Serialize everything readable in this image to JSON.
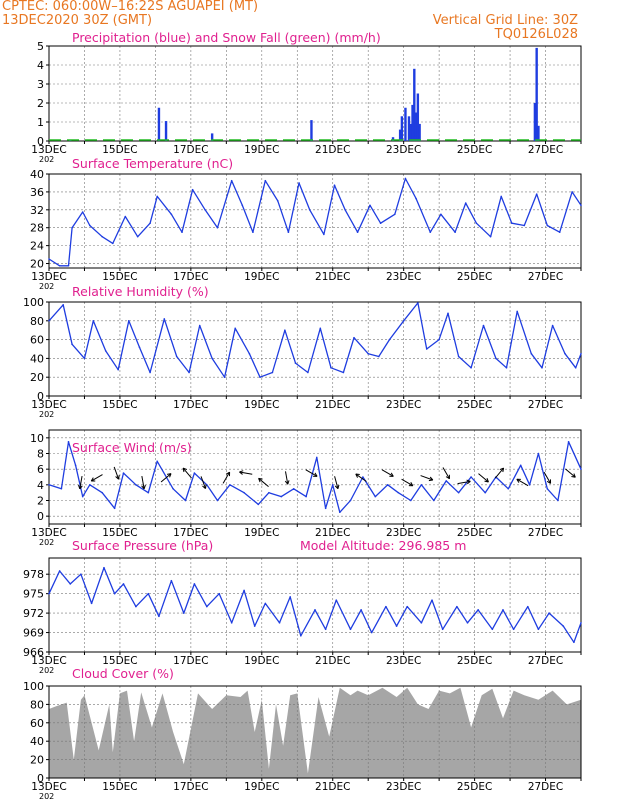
{
  "colors": {
    "header": "#e87722",
    "panel_title": "#e0208f",
    "series_line": "#1f3de0",
    "precip_bar": "#1f3de0",
    "snow_bar": "#22bb22",
    "cloud_fill": "#a6a6a6",
    "wind_arrow": "#000000",
    "grid": "#777777"
  },
  "header": {
    "left_line1": "CPTEC:   060:00W–16:22S   AGUAPEI (MT)",
    "left_line2": "13DEC2020  30Z  (GMT)",
    "vertical_grid_line": "Vertical Grid Line: 30Z",
    "code": "TQ0126L028"
  },
  "x_axis": {
    "ticks": [
      "13DEC",
      "15DEC",
      "17DEC",
      "19DEC",
      "21DEC",
      "23DEC",
      "25DEC",
      "27DEC"
    ],
    "year_fragment": "202",
    "start_day": 13,
    "end_day": 28
  },
  "chart_data": [
    {
      "id": "precip",
      "type": "bar",
      "title": "Precipitation (blue) and Snow Fall (green) (mm/h)",
      "ylim": [
        0,
        5
      ],
      "yticks": [
        "0",
        "1",
        "2",
        "3",
        "4",
        "5"
      ],
      "series": [
        {
          "name": "Precipitation",
          "x": [
            13.6,
            16.1,
            16.3,
            17.6,
            20.4,
            22.7,
            22.9,
            22.95,
            23.05,
            23.15,
            23.2,
            23.25,
            23.3,
            23.35,
            23.4,
            23.45,
            26.7,
            26.75,
            26.8
          ],
          "values": [
            0.05,
            1.75,
            1.05,
            0.4,
            1.1,
            0.2,
            0.6,
            1.3,
            1.75,
            1.3,
            0.9,
            1.9,
            3.8,
            1.5,
            2.5,
            0.9,
            2.0,
            4.9,
            0.8
          ]
        },
        {
          "name": "Snow Fall",
          "x": [
            13.0,
            28.0
          ],
          "values": [
            0.05,
            0.05
          ]
        }
      ]
    },
    {
      "id": "temp",
      "type": "line",
      "title": "Surface Temperature (nC)",
      "ylim": [
        19,
        40
      ],
      "yticks": [
        "20",
        "24",
        "28",
        "32",
        "36",
        "40"
      ],
      "x": [
        13.0,
        13.3,
        13.55,
        13.65,
        13.95,
        14.15,
        14.5,
        14.8,
        15.15,
        15.5,
        15.85,
        16.05,
        16.45,
        16.75,
        17.05,
        17.4,
        17.75,
        18.15,
        18.45,
        18.75,
        19.1,
        19.45,
        19.75,
        20.05,
        20.35,
        20.75,
        21.05,
        21.35,
        21.7,
        22.05,
        22.35,
        22.75,
        23.05,
        23.35,
        23.75,
        24.05,
        24.45,
        24.75,
        25.05,
        25.45,
        25.75,
        26.05,
        26.4,
        26.75,
        27.05,
        27.4,
        27.75,
        28.0
      ],
      "values": [
        21,
        19.5,
        19.5,
        28,
        31.5,
        28.5,
        26,
        24.5,
        30.5,
        26,
        29,
        35,
        31,
        27,
        36.5,
        32,
        28,
        38.5,
        33,
        27,
        38.5,
        34,
        27,
        38,
        32,
        26.5,
        37.5,
        32,
        27,
        33,
        29,
        31,
        39,
        34.5,
        27,
        31,
        27,
        33.5,
        29,
        26,
        35,
        29,
        28.5,
        35.5,
        28.5,
        27,
        36,
        33
      ]
    },
    {
      "id": "rh",
      "type": "line",
      "title": "Relative Humidity (%)",
      "ylim": [
        0,
        100
      ],
      "yticks": [
        "0",
        "20",
        "40",
        "60",
        "80",
        "100"
      ],
      "x": [
        13.0,
        13.4,
        13.65,
        14.0,
        14.25,
        14.6,
        14.95,
        15.25,
        15.55,
        15.85,
        16.25,
        16.6,
        16.95,
        17.25,
        17.6,
        17.95,
        18.25,
        18.65,
        18.95,
        19.3,
        19.65,
        19.95,
        20.3,
        20.65,
        20.95,
        21.3,
        21.6,
        22.0,
        22.3,
        22.6,
        23.0,
        23.4,
        23.65,
        24.0,
        24.25,
        24.55,
        24.9,
        25.25,
        25.6,
        25.9,
        26.2,
        26.6,
        26.9,
        27.2,
        27.55,
        27.85,
        28.0
      ],
      "values": [
        80,
        97,
        55,
        40,
        80,
        48,
        28,
        80,
        52,
        25,
        82,
        42,
        25,
        75,
        40,
        20,
        72,
        45,
        20,
        25,
        70,
        35,
        25,
        72,
        30,
        25,
        62,
        45,
        42,
        60,
        80,
        99,
        50,
        60,
        88,
        42,
        30,
        75,
        40,
        30,
        90,
        45,
        30,
        75,
        45,
        30,
        45
      ]
    },
    {
      "id": "wind",
      "type": "line",
      "title": "Surface Wind (m/s)",
      "ylim": [
        -1,
        11
      ],
      "yticks": [
        "0",
        "2",
        "4",
        "6",
        "8",
        "10"
      ],
      "x": [
        13.0,
        13.35,
        13.55,
        13.75,
        13.95,
        14.15,
        14.5,
        14.85,
        15.1,
        15.45,
        15.8,
        16.05,
        16.5,
        16.85,
        17.1,
        17.45,
        17.75,
        18.1,
        18.5,
        18.9,
        19.2,
        19.55,
        19.9,
        20.25,
        20.55,
        20.8,
        21.0,
        21.2,
        21.5,
        21.85,
        22.2,
        22.55,
        22.85,
        23.2,
        23.5,
        23.85,
        24.2,
        24.55,
        24.9,
        25.3,
        25.6,
        25.95,
        26.3,
        26.55,
        26.8,
        27.05,
        27.35,
        27.65,
        28.0
      ],
      "values": [
        4,
        3.5,
        9.5,
        6.5,
        2.5,
        4,
        3,
        1,
        5.5,
        4,
        3,
        7,
        3.5,
        2,
        5.5,
        4,
        2,
        4,
        3,
        1.5,
        3,
        2.5,
        3.5,
        2.5,
        7.5,
        1,
        4,
        0.5,
        2,
        5,
        2.5,
        4,
        3,
        2,
        4,
        2,
        4.5,
        3,
        5,
        3,
        5,
        3.5,
        6.5,
        4,
        8,
        3.5,
        2,
        9.5,
        6
      ]
    },
    {
      "id": "pressure",
      "type": "line",
      "title": "Surface Pressure (hPa)",
      "subtitle": "Model Altitude: 296.985 m",
      "ylim": [
        966,
        980.5
      ],
      "yticks": [
        "966",
        "969",
        "972",
        "975",
        "978"
      ],
      "x": [
        13.0,
        13.3,
        13.6,
        13.9,
        14.2,
        14.55,
        14.85,
        15.1,
        15.45,
        15.8,
        16.1,
        16.45,
        16.8,
        17.1,
        17.45,
        17.8,
        18.15,
        18.5,
        18.8,
        19.1,
        19.5,
        19.8,
        20.1,
        20.5,
        20.8,
        21.1,
        21.5,
        21.8,
        22.1,
        22.5,
        22.8,
        23.1,
        23.5,
        23.8,
        24.1,
        24.5,
        24.8,
        25.1,
        25.5,
        25.8,
        26.1,
        26.5,
        26.8,
        27.1,
        27.5,
        27.8,
        28.0
      ],
      "values": [
        975,
        978.5,
        976.5,
        978,
        973.5,
        979,
        975,
        976.5,
        973,
        975,
        971.5,
        977,
        972,
        976.5,
        973,
        975,
        970.5,
        975.5,
        970,
        973.5,
        970.5,
        974.5,
        968.5,
        972.5,
        969.5,
        974,
        969.5,
        972.5,
        969,
        973,
        970,
        973,
        970.5,
        974,
        969.5,
        973,
        970.5,
        972.5,
        969.5,
        972.5,
        969.5,
        973,
        969.5,
        972,
        970,
        967.5,
        970.5
      ]
    },
    {
      "id": "cloud",
      "type": "area",
      "title": "Cloud Cover (%)",
      "ylim": [
        0,
        100
      ],
      "yticks": [
        "0",
        "20",
        "40",
        "60",
        "80",
        "100"
      ],
      "x": [
        13.0,
        13.2,
        13.5,
        13.7,
        13.9,
        14.0,
        14.4,
        14.7,
        14.8,
        15.0,
        15.2,
        15.4,
        15.6,
        15.9,
        16.2,
        16.5,
        16.8,
        17.2,
        17.6,
        18.0,
        18.4,
        18.6,
        18.8,
        19.0,
        19.2,
        19.4,
        19.6,
        19.8,
        20.0,
        20.3,
        20.6,
        20.9,
        21.2,
        21.5,
        21.7,
        22.0,
        22.4,
        22.8,
        23.1,
        23.4,
        23.7,
        24.0,
        24.3,
        24.6,
        24.9,
        25.2,
        25.5,
        25.8,
        26.1,
        26.4,
        26.8,
        27.2,
        27.6,
        28.0
      ],
      "values": [
        75,
        78,
        82,
        20,
        85,
        90,
        30,
        80,
        28,
        92,
        95,
        40,
        93,
        55,
        92,
        50,
        15,
        92,
        75,
        90,
        88,
        95,
        50,
        85,
        10,
        80,
        35,
        90,
        92,
        5,
        88,
        45,
        98,
        90,
        95,
        90,
        98,
        88,
        98,
        80,
        75,
        95,
        92,
        98,
        55,
        90,
        97,
        65,
        95,
        90,
        85,
        95,
        80,
        85
      ]
    },
    {
      "id": "wind_arrows",
      "type": "vector",
      "title": "Surface Wind directions",
      "x": [
        13.9,
        14.35,
        14.9,
        15.65,
        16.3,
        16.9,
        17.35,
        18.0,
        18.55,
        19.05,
        19.7,
        20.4,
        21.1,
        21.8,
        22.55,
        23.1,
        23.65,
        24.2,
        24.7,
        25.25,
        25.7,
        26.35,
        27.05,
        27.7
      ],
      "values": [
        -100,
        -150,
        -70,
        -80,
        40,
        130,
        -70,
        60,
        170,
        140,
        -80,
        -30,
        -75,
        145,
        -30,
        -30,
        -20,
        -60,
        10,
        -40,
        50,
        150,
        -60,
        -40
      ]
    }
  ]
}
